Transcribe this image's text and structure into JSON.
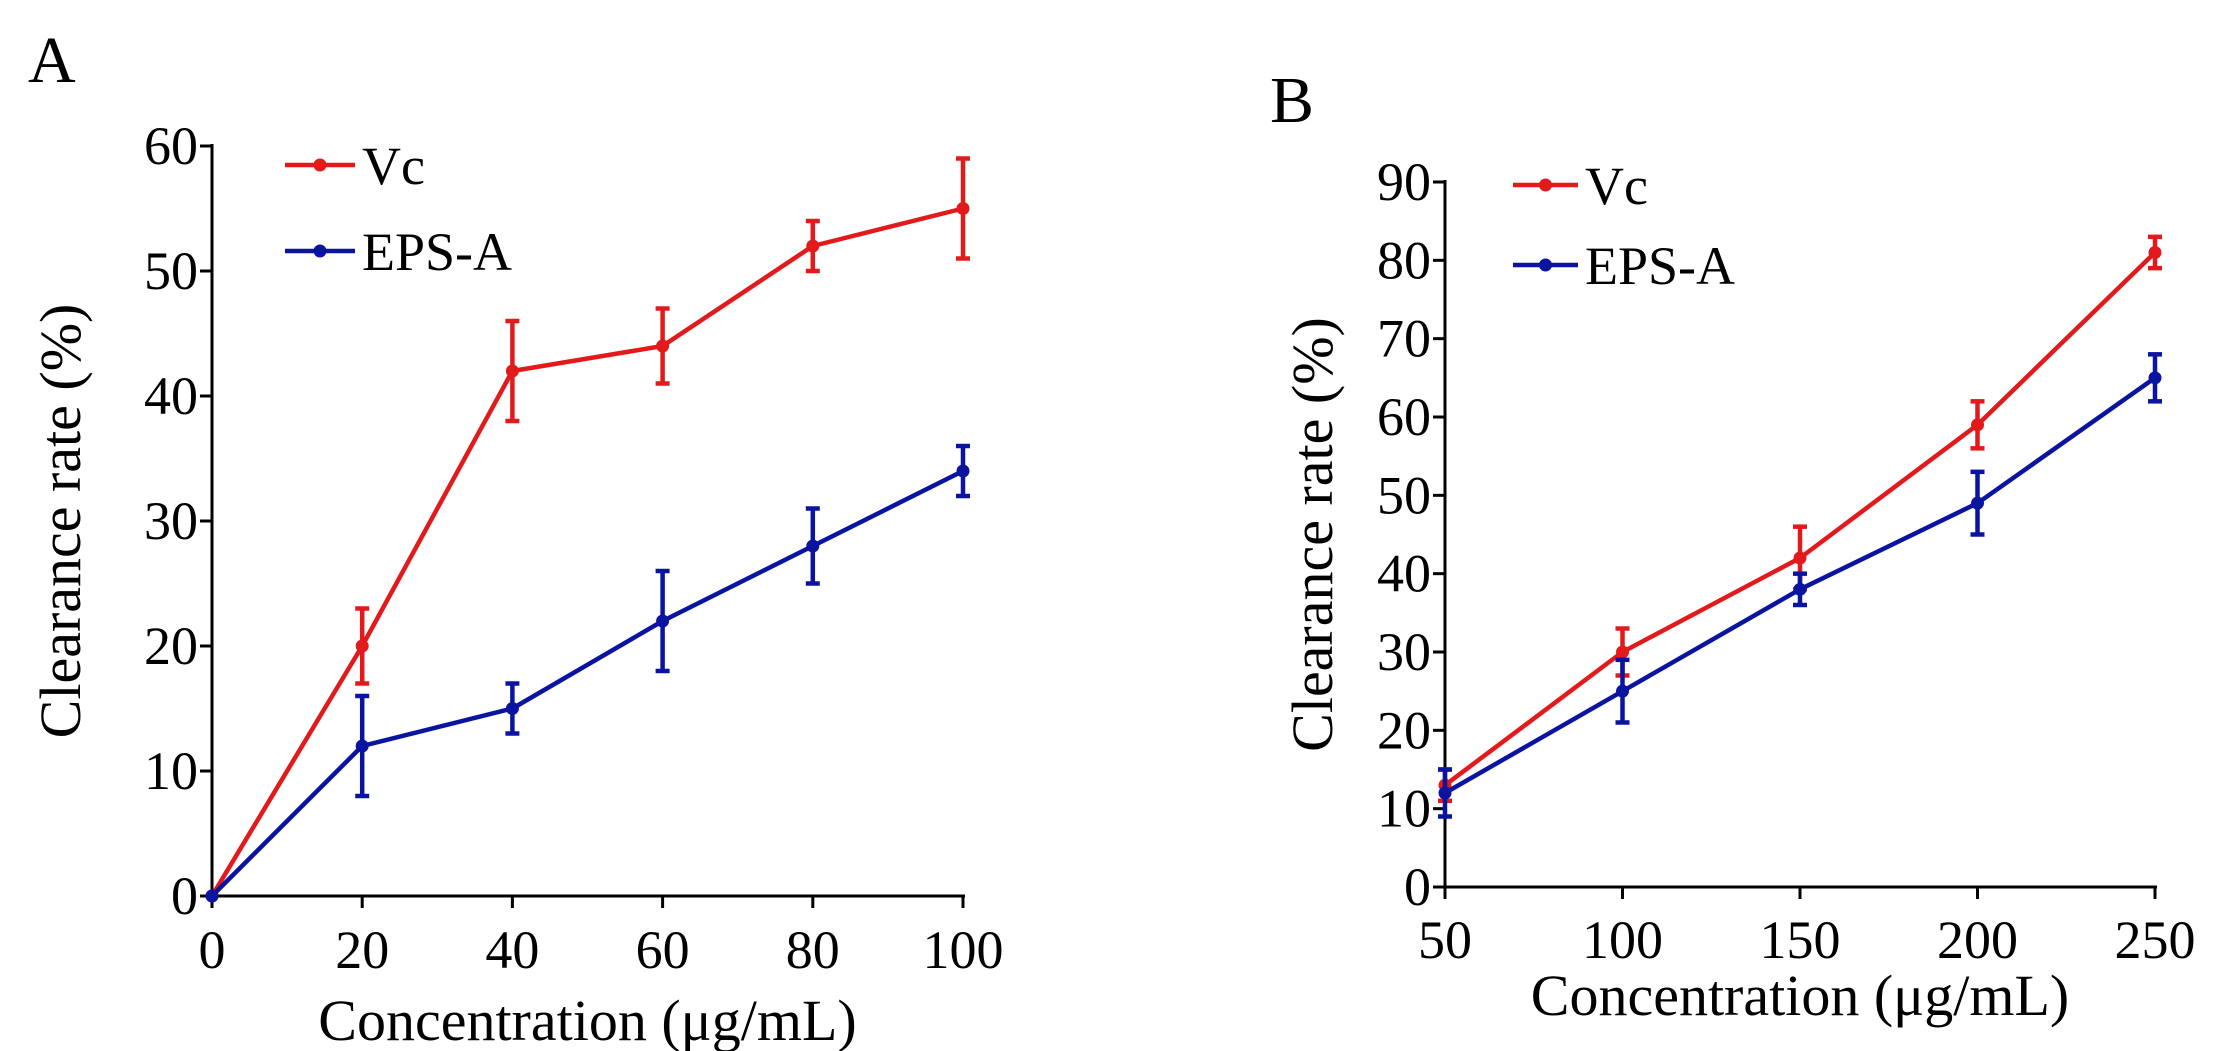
{
  "colors": {
    "vc": "#e31a1c",
    "eps": "#0a14a0"
  },
  "chart_data": [
    {
      "panel": "A",
      "type": "line",
      "title": "",
      "xlabel": "Concentration (μg/mL)",
      "ylabel": "Clearance rate (%)",
      "xlim": [
        0,
        100
      ],
      "ylim": [
        0,
        60
      ],
      "xticks": [
        0,
        20,
        40,
        60,
        80,
        100
      ],
      "yticks": [
        0,
        10,
        20,
        30,
        40,
        50,
        60
      ],
      "legend_position": "top-left",
      "grid": false,
      "series": [
        {
          "name": "Vc",
          "color": "#e31a1c",
          "x": [
            0,
            20,
            40,
            60,
            80,
            100
          ],
          "y": [
            0,
            20,
            42,
            44,
            52,
            55
          ],
          "err": [
            0,
            3,
            4,
            3,
            2,
            4
          ]
        },
        {
          "name": "EPS-A",
          "color": "#0a14a0",
          "x": [
            0,
            20,
            40,
            60,
            80,
            100
          ],
          "y": [
            0,
            12,
            15,
            22,
            28,
            34
          ],
          "err": [
            0,
            4,
            2,
            4,
            3,
            2
          ]
        }
      ]
    },
    {
      "panel": "B",
      "type": "line",
      "title": "",
      "xlabel": "Concentration (μg/mL)",
      "ylabel": "Clearance rate (%)",
      "xlim": [
        50,
        250
      ],
      "ylim": [
        0,
        90
      ],
      "xticks": [
        50,
        100,
        150,
        200,
        250
      ],
      "yticks": [
        0,
        10,
        20,
        30,
        40,
        50,
        60,
        70,
        80,
        90
      ],
      "legend_position": "top-left",
      "grid": false,
      "series": [
        {
          "name": "Vc",
          "color": "#e31a1c",
          "x": [
            50,
            100,
            150,
            200,
            250
          ],
          "y": [
            13,
            30,
            42,
            59,
            81
          ],
          "err": [
            2,
            3,
            4,
            3,
            2
          ]
        },
        {
          "name": "EPS-A",
          "color": "#0a14a0",
          "x": [
            50,
            100,
            150,
            200,
            250
          ],
          "y": [
            12,
            25,
            38,
            49,
            65
          ],
          "err": [
            3,
            4,
            2,
            4,
            3
          ]
        }
      ]
    }
  ]
}
